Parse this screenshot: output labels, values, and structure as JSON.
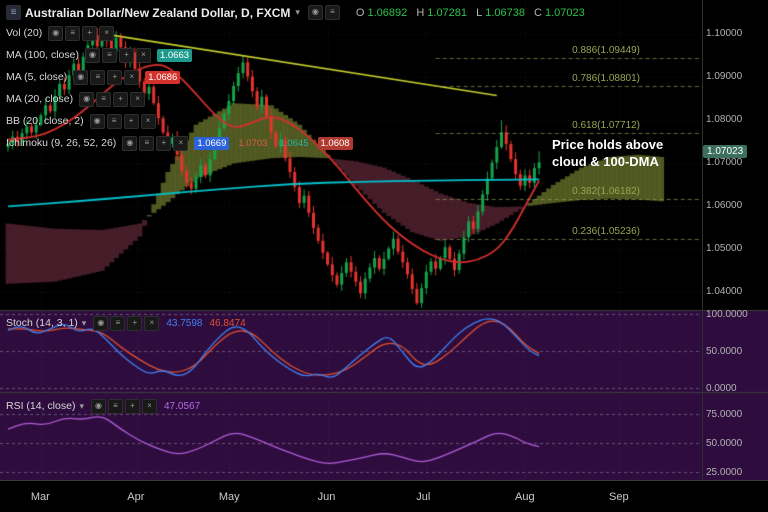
{
  "colors": {
    "background": "#000000",
    "panel_bg": "#2e0d3e",
    "grid": "rgba(255,255,255,0.08)",
    "axis_text": "#b2b2b2",
    "up": "#16a34a",
    "down": "#e5342e",
    "ma100": "#00c2cc",
    "ma20": "#d62f2f",
    "cloud_bull": "rgba(111,122,46,0.72)",
    "cloud_bear": "rgba(86,36,50,0.8)",
    "trendline": "#c9cf2c",
    "fib": "#9aa554",
    "stoch_k": "#3f7ff2",
    "stoch_d": "#e0502f",
    "rsi": "#ad5cd6",
    "tag_bg": "#3d6f60"
  },
  "symbol": {
    "title": "Australian Dollar/New Zealand Dollar, D, FXCM",
    "caret": "▾",
    "ohlc": {
      "o_label": "O",
      "o": "1.06892",
      "h_label": "H",
      "h": "1.07281",
      "l_label": "L",
      "l": "1.06738",
      "c_label": "C",
      "c": "1.07023"
    }
  },
  "legend": {
    "row_icons": [
      {
        "name": "eye-icon",
        "glyph": "◉"
      },
      {
        "name": "menu-icon",
        "glyph": "≡"
      },
      {
        "name": "add-icon",
        "glyph": "+"
      },
      {
        "name": "close-icon",
        "glyph": "×"
      }
    ],
    "title_icons": [
      {
        "name": "camera-icon",
        "glyph": "◉"
      },
      {
        "name": "settings-icon",
        "glyph": "≡"
      }
    ],
    "rows": [
      {
        "slug": "vol-20",
        "label": "Vol (20)",
        "values": []
      },
      {
        "slug": "ma-100",
        "label": "MA (100, close)",
        "values": [
          {
            "text": "1.0663",
            "bg": "#1d9a8c",
            "fg": "#ffffff"
          }
        ]
      },
      {
        "slug": "ma-5",
        "label": "MA (5, close)",
        "values": [
          {
            "text": "1.0686",
            "bg": "#d2322b",
            "fg": "#ffffff"
          }
        ]
      },
      {
        "slug": "ma-20",
        "label": "MA (20, close)",
        "values": []
      },
      {
        "slug": "bb-20",
        "label": "BB (20, close, 2)",
        "values": []
      },
      {
        "slug": "ichimoku",
        "label": "Ichimoku (9, 26, 52, 26)",
        "values": [
          {
            "text": "1.0669",
            "bg": "#2b62d9",
            "fg": "#ffffff"
          },
          {
            "text": "1.0703",
            "bg": "",
            "fg": "#e05a4e"
          },
          {
            "text": "1.0645",
            "bg": "",
            "fg": "#27b3a2"
          },
          {
            "text": "1.0608",
            "bg": "#b03a30",
            "fg": "#ffffff"
          }
        ]
      }
    ]
  },
  "panels": {
    "stoch": {
      "label": "Stoch (14, 3, 1)",
      "caret": "▾",
      "values": [
        {
          "text": "43.7598",
          "fg": "#3f7ff2"
        },
        {
          "text": "46.8474",
          "fg": "#e0502f"
        }
      ],
      "ticks": [
        {
          "label": "100.0000",
          "value": 100
        },
        {
          "label": "50.0000",
          "value": 50
        },
        {
          "label": "0.0000",
          "value": 0
        }
      ]
    },
    "rsi": {
      "label": "RSI (14, close)",
      "caret": "▾",
      "values": [
        {
          "text": "47.0567",
          "fg": "#b36ae2"
        }
      ],
      "ticks": [
        {
          "label": "75.0000",
          "value": 75
        },
        {
          "label": "50.0000",
          "value": 50
        },
        {
          "label": "25.0000",
          "value": 25
        }
      ]
    }
  },
  "price_axis": {
    "ticks": [
      {
        "label": "1.10000",
        "price": 1.1
      },
      {
        "label": "1.09000",
        "price": 1.09
      },
      {
        "label": "1.08000",
        "price": 1.08
      },
      {
        "label": "1.07000",
        "price": 1.07
      },
      {
        "label": "1.06000",
        "price": 1.06
      },
      {
        "label": "1.05000",
        "price": 1.05
      },
      {
        "label": "1.04000",
        "price": 1.04
      }
    ],
    "last_price_tag": {
      "label": "1.07023",
      "price": 1.07023
    }
  },
  "time_axis": {
    "months": [
      {
        "label": "Mar",
        "idx": 7
      },
      {
        "label": "Apr",
        "idx": 27.5
      },
      {
        "label": "May",
        "idx": 47
      },
      {
        "label": "Jun",
        "idx": 68
      },
      {
        "label": "Jul",
        "idx": 89
      },
      {
        "label": "Aug",
        "idx": 110
      },
      {
        "label": "Sep",
        "idx": 130
      }
    ]
  },
  "annotation": {
    "lines": [
      "Price holds above",
      "cloud & 100-DMA"
    ]
  },
  "chart_data": {
    "type": "candlestick",
    "symbol": "AUD/NZD",
    "timeframe": "D",
    "exchange": "FXCM",
    "price_range": [
      1.035,
      1.108
    ],
    "ohlc_last": {
      "open": 1.06892,
      "high": 1.07281,
      "low": 1.06738,
      "close": 1.07023
    },
    "candles": {
      "first_open": 1.0738,
      "closes": [
        1.0745,
        1.0762,
        1.0751,
        1.077,
        1.0786,
        1.0772,
        1.079,
        1.0812,
        1.0835,
        1.0821,
        1.0856,
        1.0885,
        1.0872,
        1.0905,
        1.0932,
        1.0915,
        1.0948,
        1.0975,
        1.0998,
        1.0972,
        1.1002,
        1.0985,
        1.096,
        1.0992,
        1.097,
        1.0935,
        1.0958,
        1.092,
        1.089,
        1.0862,
        1.0878,
        1.084,
        1.0805,
        1.0772,
        1.0745,
        1.076,
        1.072,
        1.0682,
        1.0655,
        1.0641,
        1.0668,
        1.0695,
        1.0672,
        1.071,
        1.0748,
        1.0782,
        1.0815,
        1.0845,
        1.088,
        1.091,
        1.0935,
        1.0902,
        1.0868,
        1.0832,
        1.0855,
        1.081,
        1.0772,
        1.074,
        1.0755,
        1.0712,
        1.068,
        1.0645,
        1.0608,
        1.0625,
        1.0585,
        1.055,
        1.052,
        1.0492,
        1.0465,
        1.044,
        1.0418,
        1.0445,
        1.047,
        1.0448,
        1.0425,
        1.0398,
        1.0432,
        1.0458,
        1.048,
        1.0455,
        1.0478,
        1.0502,
        1.0525,
        1.0495,
        1.047,
        1.0442,
        1.0408,
        1.0375,
        1.041,
        1.0448,
        1.0472,
        1.0455,
        1.048,
        1.0505,
        1.0478,
        1.0452,
        1.049,
        1.0528,
        1.0565,
        1.0548,
        1.0588,
        1.0628,
        1.0665,
        1.0702,
        1.0738,
        1.0772,
        1.0745,
        1.071,
        1.0675,
        1.0648,
        1.0672,
        1.0655,
        1.0689,
        1.07023
      ],
      "wick_overrides": {
        "20": {
          "h": 1.1019
        },
        "50": {
          "h": 1.0952
        },
        "87": {
          "l": 1.0371
        },
        "105": {
          "h": 1.08
        },
        "113": {
          "h": 1.07281,
          "l": 1.06738
        }
      }
    },
    "ma100_points": [
      [
        0,
        1.06
      ],
      [
        15,
        1.0612
      ],
      [
        30,
        1.0626
      ],
      [
        45,
        1.064
      ],
      [
        60,
        1.0652
      ],
      [
        75,
        1.0658
      ],
      [
        90,
        1.066
      ],
      [
        105,
        1.0662
      ],
      [
        113,
        1.0663
      ]
    ],
    "ma20_points": [
      [
        0,
        1.0755
      ],
      [
        6,
        1.0762
      ],
      [
        10,
        1.0778
      ],
      [
        14,
        1.0805
      ],
      [
        18,
        1.084
      ],
      [
        22,
        1.088
      ],
      [
        26,
        1.091
      ],
      [
        30,
        1.0928
      ],
      [
        33,
        1.093
      ],
      [
        36,
        1.0908
      ],
      [
        40,
        1.0862
      ],
      [
        44,
        1.0812
      ],
      [
        48,
        1.078
      ],
      [
        52,
        1.0795
      ],
      [
        56,
        1.0812
      ],
      [
        60,
        1.0795
      ],
      [
        64,
        1.0762
      ],
      [
        68,
        1.072
      ],
      [
        72,
        1.0668
      ],
      [
        76,
        1.0615
      ],
      [
        80,
        1.0567
      ],
      [
        84,
        1.0528
      ],
      [
        88,
        1.0498
      ],
      [
        92,
        1.0477
      ],
      [
        96,
        1.0468
      ],
      [
        100,
        1.0475
      ],
      [
        104,
        1.0498
      ],
      [
        107,
        1.054
      ],
      [
        110,
        1.06
      ],
      [
        113,
        1.066
      ]
    ],
    "ichimoku_cloud": {
      "idx": [
        0,
        10,
        20,
        28,
        34,
        40,
        48,
        56,
        62,
        68,
        74,
        80,
        86,
        92,
        98,
        104,
        110,
        116,
        122,
        128,
        134,
        139
      ],
      "senkou_a": [
        1.042,
        1.0425,
        1.045,
        1.053,
        1.068,
        1.079,
        1.084,
        1.0835,
        1.079,
        1.072,
        1.0648,
        1.0585,
        1.054,
        1.052,
        1.053,
        1.056,
        1.06,
        1.065,
        1.069,
        1.0715,
        1.072,
        1.0715
      ],
      "senkou_b": [
        1.056,
        1.0548,
        1.0545,
        1.056,
        1.061,
        1.0665,
        1.07,
        1.0712,
        1.0715,
        1.0712,
        1.0705,
        1.069,
        1.0662,
        1.063,
        1.0608,
        1.0598,
        1.06,
        1.0608,
        1.0615,
        1.0618,
        1.0616,
        1.0612
      ]
    },
    "trendline": {
      "from": [
        21,
        1.1
      ],
      "to": [
        104,
        1.0858
      ]
    },
    "fib_start_idx": 91,
    "fib_levels": [
      {
        "label": "0.886(1.09449)",
        "price": 1.09449
      },
      {
        "label": "0.786(1.08801)",
        "price": 1.08801
      },
      {
        "label": "0.618(1.07712)",
        "price": 1.07712
      },
      {
        "label": "0.382(1.06182)",
        "price": 1.06182
      },
      {
        "label": "0.236(1.05236)",
        "price": 1.05236
      }
    ],
    "stoch": {
      "k_points": [
        [
          0,
          78
        ],
        [
          3,
          85
        ],
        [
          6,
          72
        ],
        [
          9,
          80
        ],
        [
          12,
          88
        ],
        [
          15,
          75
        ],
        [
          18,
          82
        ],
        [
          21,
          65
        ],
        [
          24,
          45
        ],
        [
          27,
          30
        ],
        [
          30,
          18
        ],
        [
          33,
          25
        ],
        [
          36,
          15
        ],
        [
          39,
          22
        ],
        [
          42,
          48
        ],
        [
          45,
          70
        ],
        [
          48,
          85
        ],
        [
          51,
          78
        ],
        [
          54,
          55
        ],
        [
          57,
          38
        ],
        [
          60,
          25
        ],
        [
          63,
          15
        ],
        [
          66,
          20
        ],
        [
          69,
          12
        ],
        [
          72,
          28
        ],
        [
          75,
          45
        ],
        [
          78,
          60
        ],
        [
          81,
          72
        ],
        [
          84,
          48
        ],
        [
          87,
          25
        ],
        [
          90,
          35
        ],
        [
          93,
          55
        ],
        [
          96,
          75
        ],
        [
          99,
          88
        ],
        [
          102,
          95
        ],
        [
          105,
          90
        ],
        [
          108,
          70
        ],
        [
          111,
          50
        ],
        [
          113,
          43.76
        ]
      ],
      "d_points": [
        [
          0,
          80
        ],
        [
          4,
          80
        ],
        [
          8,
          76
        ],
        [
          12,
          82
        ],
        [
          16,
          79
        ],
        [
          20,
          76
        ],
        [
          24,
          55
        ],
        [
          28,
          38
        ],
        [
          32,
          24
        ],
        [
          36,
          20
        ],
        [
          40,
          30
        ],
        [
          44,
          58
        ],
        [
          48,
          78
        ],
        [
          52,
          76
        ],
        [
          56,
          50
        ],
        [
          60,
          30
        ],
        [
          64,
          18
        ],
        [
          68,
          17
        ],
        [
          72,
          24
        ],
        [
          76,
          42
        ],
        [
          80,
          62
        ],
        [
          84,
          58
        ],
        [
          87,
          34
        ],
        [
          90,
          30
        ],
        [
          94,
          48
        ],
        [
          98,
          72
        ],
        [
          101,
          88
        ],
        [
          104,
          92
        ],
        [
          107,
          80
        ],
        [
          110,
          58
        ],
        [
          113,
          46.85
        ]
      ]
    },
    "rsi": {
      "points": [
        [
          0,
          62
        ],
        [
          4,
          68
        ],
        [
          8,
          65
        ],
        [
          12,
          72
        ],
        [
          16,
          70
        ],
        [
          20,
          74
        ],
        [
          24,
          62
        ],
        [
          28,
          52
        ],
        [
          32,
          45
        ],
        [
          36,
          40
        ],
        [
          40,
          44
        ],
        [
          44,
          52
        ],
        [
          48,
          60
        ],
        [
          52,
          55
        ],
        [
          56,
          48
        ],
        [
          60,
          42
        ],
        [
          64,
          36
        ],
        [
          68,
          32
        ],
        [
          72,
          35
        ],
        [
          76,
          38
        ],
        [
          80,
          42
        ],
        [
          84,
          38
        ],
        [
          88,
          33
        ],
        [
          92,
          38
        ],
        [
          96,
          45
        ],
        [
          100,
          52
        ],
        [
          104,
          60
        ],
        [
          108,
          55
        ],
        [
          110,
          50
        ],
        [
          113,
          47.06
        ]
      ]
    }
  }
}
